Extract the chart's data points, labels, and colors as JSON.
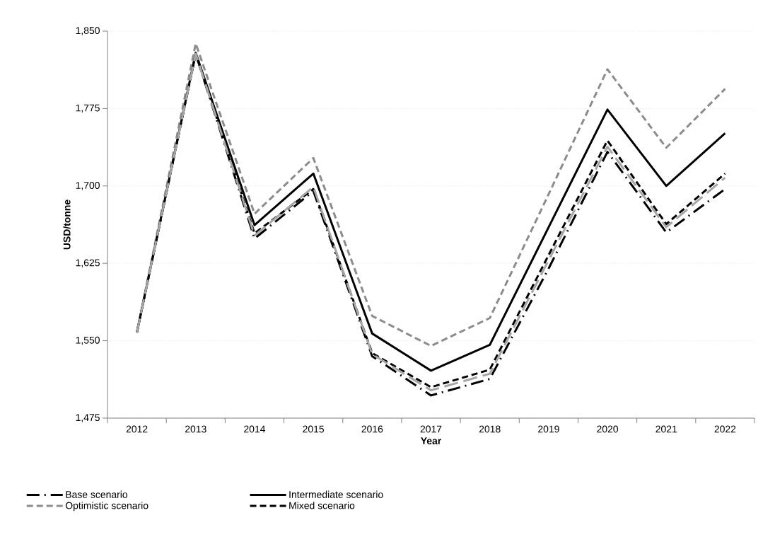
{
  "chart_data": {
    "type": "line",
    "xlabel": "Year",
    "ylabel": "USD/tonne",
    "categories": [
      "2012",
      "2013",
      "2014",
      "2015",
      "2016",
      "2017",
      "2018",
      "2019",
      "2020",
      "2021",
      "2022"
    ],
    "ylim": [
      1475,
      1850
    ],
    "yticks": [
      {
        "value": 1475,
        "label": "1,475"
      },
      {
        "value": 1550,
        "label": "1,550"
      },
      {
        "value": 1625,
        "label": "1,625"
      },
      {
        "value": 1700,
        "label": "1,700"
      },
      {
        "value": 1775,
        "label": "1,775"
      },
      {
        "value": 1850,
        "label": "1,850"
      }
    ],
    "grid": "y",
    "legend": "bottom",
    "marker": "none",
    "series": [
      {
        "name": "Base scenario",
        "color": "#000000",
        "line_style": "dashdot",
        "values": [
          1558,
          1828,
          1649,
          1695,
          1535,
          1497,
          1513,
          1620,
          1733,
          1655,
          1697
        ]
      },
      {
        "name": "Intermediate scenario",
        "color": "#000000",
        "line_style": "solid",
        "values": [
          1558,
          1829,
          1662,
          1712,
          1557,
          1521,
          1546,
          1660,
          1774,
          1700,
          1751
        ]
      },
      {
        "name": "Optimistic scenario",
        "color": "#8c8c8c",
        "line_style": "dashed",
        "values": [
          1558,
          1838,
          1673,
          1727,
          1574,
          1545,
          1572,
          1692,
          1813,
          1737,
          1794
        ]
      },
      {
        "name": "Mixed scenario",
        "color": "#000000",
        "line_style": "dashed",
        "values": [
          1558,
          1828,
          1654,
          1697,
          1538,
          1505,
          1522,
          1633,
          1744,
          1663,
          1712
        ]
      },
      {
        "color": "#a6a6a6",
        "line_style": "longdash",
        "values": [
          1558,
          1828,
          1652,
          1699,
          1537,
          1502,
          1518,
          1628,
          1738,
          1660,
          1708
        ]
      }
    ]
  }
}
